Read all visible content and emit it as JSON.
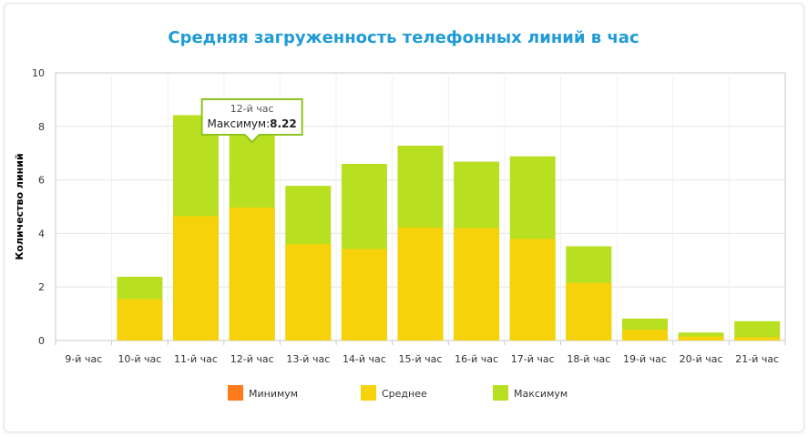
{
  "chart_data": {
    "type": "bar",
    "title": "Средняя загруженность телефонных линий в час",
    "xlabel": "",
    "ylabel": "Количество линий",
    "ylim": [
      0,
      10
    ],
    "yticks": [
      "0",
      "2",
      "4",
      "6",
      "8",
      "10"
    ],
    "categories": [
      "9-й час",
      "10-й час",
      "11-й час",
      "12-й час",
      "13-й час",
      "14-й час",
      "15-й час",
      "16-й час",
      "17-й час",
      "18-й час",
      "19-й час",
      "20-й час",
      "21-й час"
    ],
    "series": [
      {
        "name": "Минимум",
        "color": "#ff7a1a",
        "values": [
          0,
          0,
          0,
          0,
          0,
          0,
          0,
          0,
          0,
          0,
          0,
          0,
          0
        ]
      },
      {
        "name": "Среднее",
        "color": "#f5d20a",
        "values": [
          0,
          1.55,
          4.65,
          4.97,
          3.6,
          3.42,
          4.22,
          4.2,
          3.8,
          2.15,
          0.4,
          0.15,
          0.12
        ]
      },
      {
        "name": "Максимум",
        "color": "#b8e021",
        "values": [
          0,
          2.38,
          8.42,
          8.22,
          5.78,
          6.6,
          7.28,
          6.68,
          6.88,
          3.52,
          0.82,
          0.3,
          0.72
        ]
      }
    ],
    "grid": true,
    "legend_position": "bottom",
    "tooltip": {
      "title": "12-й час",
      "label": "Максимум:",
      "value": "8.22",
      "category_index": 3
    }
  }
}
